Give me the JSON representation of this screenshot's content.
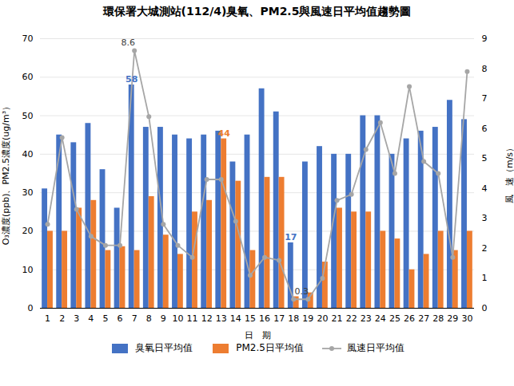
{
  "chart_data": {
    "type": "bar",
    "title": "環保署大城測站(112/4)臭氧、PM2.5與風速日平均值趨勢圖",
    "xlabel": "日　期",
    "ylabel": "O₃濃度(ppb)、PM2.5濃度(ug/m³）",
    "y2label": "風　速（m/s）",
    "categories": [
      "1",
      "2",
      "3",
      "4",
      "5",
      "6",
      "7",
      "8",
      "9",
      "10",
      "11",
      "12",
      "13",
      "14",
      "15",
      "16",
      "17",
      "18",
      "19",
      "20",
      "21",
      "22",
      "23",
      "24",
      "25",
      "26",
      "27",
      "28",
      "29",
      "30"
    ],
    "series": [
      {
        "name": "臭氧日平均值",
        "color": "#4472C4",
        "type": "bar",
        "values": [
          31,
          45,
          43,
          48,
          36,
          26,
          58,
          47,
          47,
          45,
          44,
          45,
          46,
          38,
          45,
          57,
          51,
          17,
          38,
          42,
          40,
          40,
          50,
          50,
          40,
          44,
          46,
          47,
          54,
          49
        ]
      },
      {
        "name": "PM2.5日平均值",
        "color": "#ED7D31",
        "type": "bar",
        "values": [
          20,
          20,
          26,
          28,
          15,
          16,
          15,
          29,
          19,
          14,
          25,
          28,
          44,
          33,
          15,
          34,
          34,
          3,
          4,
          12,
          26,
          25,
          25,
          20,
          18,
          10,
          14,
          20,
          15,
          20
        ]
      },
      {
        "name": "風速日平均值",
        "color": "#A6A6A6",
        "type": "line",
        "marker": "circle",
        "axis": "y2",
        "values": [
          2.8,
          5.7,
          3.3,
          2.4,
          2.1,
          2.1,
          8.6,
          6.4,
          2.8,
          2.1,
          1.7,
          4.3,
          4.3,
          2.9,
          1.1,
          1.7,
          1.6,
          0.3,
          0.3,
          1.0,
          3.6,
          3.8,
          5.3,
          6.2,
          4.5,
          7.4,
          4.9,
          4.5,
          1.7,
          7.9
        ]
      }
    ],
    "ylim": [
      0,
      70
    ],
    "yticks": [
      0,
      10,
      20,
      30,
      40,
      50,
      60,
      70
    ],
    "y2lim": [
      0,
      9
    ],
    "y2ticks": [
      0,
      1,
      2,
      3,
      4,
      5,
      6,
      7,
      8,
      9
    ],
    "grid": true,
    "legend": "bottom",
    "annotations": [
      {
        "text": "8.6",
        "category": "7",
        "series": "風速日平均值",
        "color": "#404040"
      },
      {
        "text": "58",
        "category": "7",
        "series": "臭氧日平均值",
        "color": "#4472C4"
      },
      {
        "text": "44",
        "category": "13",
        "series": "PM2.5日平均值",
        "color": "#ED7D31"
      },
      {
        "text": "17",
        "category": "18",
        "series": "臭氧日平均值",
        "color": "#4472C4"
      },
      {
        "text": "0.3",
        "category": "19",
        "series": "風速日平均值",
        "color": "#404040"
      }
    ]
  }
}
